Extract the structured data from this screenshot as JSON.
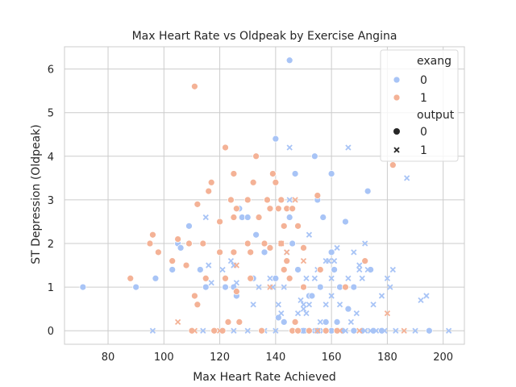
{
  "chart_data": {
    "type": "scatter",
    "title": "Max Heart Rate vs Oldpeak by Exercise Angina",
    "xlabel": "Max Heart Rate Achieved",
    "ylabel": "ST Depression (Oldpeak)",
    "xlim": [
      64.4,
      207.6
    ],
    "ylim": [
      -0.31,
      6.51
    ],
    "xticks": [
      80,
      100,
      120,
      140,
      160,
      180,
      200
    ],
    "yticks": [
      0,
      1,
      2,
      3,
      4,
      5,
      6
    ],
    "grid": true,
    "legend": {
      "position": "top-right",
      "hue_title": "exang",
      "hue_entries": [
        {
          "label": "0",
          "color": "#a8c4f6"
        },
        {
          "label": "1",
          "color": "#f4b296"
        }
      ],
      "style_title": "output",
      "style_entries": [
        {
          "label": "0",
          "marker": "circle"
        },
        {
          "label": "1",
          "marker": "x"
        }
      ]
    },
    "series": [
      {
        "exang": 0,
        "output": 0,
        "color": "#a8c4f6",
        "marker": "circle",
        "points": [
          [
            71,
            1.0
          ],
          [
            90,
            1.0
          ],
          [
            97,
            1.2
          ],
          [
            103,
            1.4
          ],
          [
            105,
            2.0
          ],
          [
            106,
            1.9
          ],
          [
            109,
            2.4
          ],
          [
            113,
            1.4
          ],
          [
            115,
            1.0
          ],
          [
            122,
            1.0
          ],
          [
            125,
            1.0
          ],
          [
            126,
            0.8
          ],
          [
            127,
            2.8
          ],
          [
            128,
            2.6
          ],
          [
            130,
            2.6
          ],
          [
            132,
            1.2
          ],
          [
            133,
            2.2
          ],
          [
            136,
            1.8
          ],
          [
            140,
            4.4
          ],
          [
            140,
            1.2
          ],
          [
            141,
            0.3
          ],
          [
            143,
            0.2
          ],
          [
            145,
            6.2
          ],
          [
            145,
            2.6
          ],
          [
            146,
            2.0
          ],
          [
            147,
            3.6
          ],
          [
            148,
            1.4
          ],
          [
            150,
            1.0
          ],
          [
            152,
            0.8
          ],
          [
            153,
            0.8
          ],
          [
            154,
            4.0
          ],
          [
            155,
            3.0
          ],
          [
            156,
            1.0
          ],
          [
            157,
            2.6
          ],
          [
            158,
            0.2
          ],
          [
            160,
            3.6
          ],
          [
            160,
            1.8
          ],
          [
            161,
            1.4
          ],
          [
            162,
            0.2
          ],
          [
            163,
            1.0
          ],
          [
            165,
            2.5
          ],
          [
            166,
            0.5
          ],
          [
            168,
            1.0
          ],
          [
            172,
            1.6
          ],
          [
            173,
            3.2
          ],
          [
            174,
            1.4
          ],
          [
            150,
            0.0
          ],
          [
            155,
            0.0
          ],
          [
            160,
            0.0
          ],
          [
            164,
            0.0
          ],
          [
            168,
            0.0
          ],
          [
            171,
            0.0
          ],
          [
            175,
            0.0
          ],
          [
            178,
            0.0
          ],
          [
            195,
            0.0
          ]
        ]
      },
      {
        "exang": 0,
        "output": 1,
        "color": "#a8c4f6",
        "marker": "x",
        "points": [
          [
            96,
            0.0
          ],
          [
            114,
            0.0
          ],
          [
            121,
            0.0
          ],
          [
            125,
            0.0
          ],
          [
            130,
            0.0
          ],
          [
            136,
            0.0
          ],
          [
            140,
            0.0
          ],
          [
            141,
            0.6
          ],
          [
            142,
            0.4
          ],
          [
            143,
            1.0
          ],
          [
            144,
            1.8
          ],
          [
            145,
            4.2
          ],
          [
            145,
            3.0
          ],
          [
            147,
            0.0
          ],
          [
            148,
            0.4
          ],
          [
            150,
            0.6
          ],
          [
            151,
            1.2
          ],
          [
            151,
            0.4
          ],
          [
            152,
            2.2
          ],
          [
            153,
            0.0
          ],
          [
            154,
            1.2
          ],
          [
            155,
            1.4
          ],
          [
            156,
            0.2
          ],
          [
            157,
            0.0
          ],
          [
            158,
            1.6
          ],
          [
            158,
            0.6
          ],
          [
            159,
            0.0
          ],
          [
            159,
            1.6
          ],
          [
            160,
            1.2
          ],
          [
            160,
            0.8
          ],
          [
            161,
            1.6
          ],
          [
            162,
            0.0
          ],
          [
            162,
            1.9
          ],
          [
            163,
            0.6
          ],
          [
            164,
            1.0
          ],
          [
            165,
            0.0
          ],
          [
            166,
            1.2
          ],
          [
            167,
            0.2
          ],
          [
            168,
            1.8
          ],
          [
            169,
            0.4
          ],
          [
            170,
            1.4
          ],
          [
            171,
            1.2
          ],
          [
            172,
            0.0
          ],
          [
            173,
            1.4
          ],
          [
            174,
            0.0
          ],
          [
            175,
            0.6
          ],
          [
            176,
            0.0
          ],
          [
            178,
            0.8
          ],
          [
            179,
            0.0
          ],
          [
            180,
            1.2
          ],
          [
            181,
            1.0
          ],
          [
            182,
            1.4
          ],
          [
            183,
            0.0
          ],
          [
            187,
            3.5
          ],
          [
            190,
            0.0
          ],
          [
            192,
            0.7
          ],
          [
            194,
            0.8
          ],
          [
            202,
            0.0
          ],
          [
            166,
            4.2
          ],
          [
            170,
            1.5
          ],
          [
            172,
            2.0
          ],
          [
            116,
            1.5
          ],
          [
            117,
            1.1
          ],
          [
            115,
            2.6
          ],
          [
            121,
            1.4
          ],
          [
            124,
            1.6
          ],
          [
            125,
            1.5
          ],
          [
            126,
            1.1
          ],
          [
            132,
            0.6
          ],
          [
            134,
            1.0
          ],
          [
            138,
            1.2
          ],
          [
            139,
            1.0
          ],
          [
            149,
            0.7
          ],
          [
            150,
            0.5
          ],
          [
            152,
            0.6
          ],
          [
            150,
            0.0
          ]
        ]
      },
      {
        "exang": 1,
        "output": 0,
        "color": "#f4b296",
        "marker": "circle",
        "points": [
          [
            88,
            1.2
          ],
          [
            95,
            2.0
          ],
          [
            96,
            2.2
          ],
          [
            98,
            1.8
          ],
          [
            103,
            1.6
          ],
          [
            105,
            2.1
          ],
          [
            108,
            1.5
          ],
          [
            109,
            2.0
          ],
          [
            110,
            0.0
          ],
          [
            111,
            5.6
          ],
          [
            111,
            0.8
          ],
          [
            112,
            0.6
          ],
          [
            112,
            2.9
          ],
          [
            114,
            2.0
          ],
          [
            115,
            1.2
          ],
          [
            116,
            3.2
          ],
          [
            117,
            3.4
          ],
          [
            118,
            0.0
          ],
          [
            120,
            2.5
          ],
          [
            120,
            1.8
          ],
          [
            121,
            0.0
          ],
          [
            122,
            4.2
          ],
          [
            122,
            1.2
          ],
          [
            123,
            0.2
          ],
          [
            124,
            3.0
          ],
          [
            125,
            2.6
          ],
          [
            125,
            3.6
          ],
          [
            125,
            1.8
          ],
          [
            126,
            2.8
          ],
          [
            126,
            0.9
          ],
          [
            127,
            0.2
          ],
          [
            130,
            3.0
          ],
          [
            130,
            2.0
          ],
          [
            131,
            1.8
          ],
          [
            131,
            1.2
          ],
          [
            132,
            3.4
          ],
          [
            133,
            4.0
          ],
          [
            134,
            2.6
          ],
          [
            135,
            0.0
          ],
          [
            136,
            2.0
          ],
          [
            137,
            3.0
          ],
          [
            138,
            2.8
          ],
          [
            138,
            1.9
          ],
          [
            139,
            3.6
          ],
          [
            140,
            3.4
          ],
          [
            141,
            2.8
          ],
          [
            142,
            3.0
          ],
          [
            142,
            2.0
          ],
          [
            143,
            1.4
          ],
          [
            143,
            2.4
          ],
          [
            144,
            2.8
          ],
          [
            144,
            1.6
          ],
          [
            145,
            1.2
          ],
          [
            146,
            2.8
          ],
          [
            146,
            0.0
          ],
          [
            147,
            0.2
          ],
          [
            148,
            2.4
          ],
          [
            148,
            0.0
          ],
          [
            150,
            1.9
          ],
          [
            150,
            1.0
          ],
          [
            152,
            0.0
          ],
          [
            155,
            3.1
          ],
          [
            156,
            1.4
          ],
          [
            158,
            0.0
          ],
          [
            162,
            0.0
          ],
          [
            165,
            1.0
          ],
          [
            172,
            1.6
          ],
          [
            182,
            3.8
          ]
        ]
      },
      {
        "exang": 1,
        "output": 1,
        "color": "#f4b296",
        "marker": "x",
        "points": [
          [
            105,
            0.2
          ],
          [
            111,
            0.0
          ],
          [
            120,
            0.0
          ],
          [
            126,
            1.5
          ],
          [
            138,
            1.0
          ],
          [
            142,
            2.0
          ],
          [
            144,
            1.8
          ],
          [
            147,
            3.0
          ],
          [
            150,
            1.6
          ],
          [
            155,
            0.0
          ],
          [
            163,
            0.0
          ],
          [
            170,
            0.0
          ],
          [
            180,
            0.4
          ],
          [
            186,
            0.0
          ]
        ]
      }
    ]
  }
}
